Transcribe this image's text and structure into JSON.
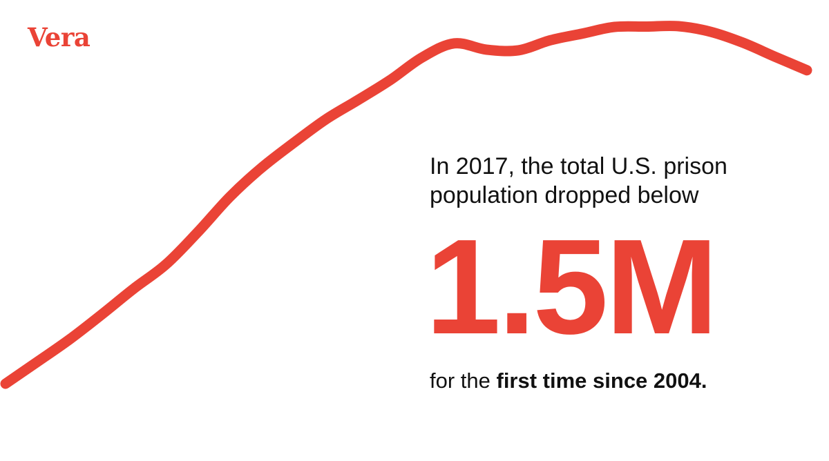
{
  "brand": {
    "name": "Vera",
    "accent_color": "#ea4336",
    "text_color": "#111111"
  },
  "headline": {
    "line1": "In 2017, the total U.S. prison",
    "line2": "population dropped below",
    "big_number": "1.5M",
    "closing_plain": "for the ",
    "closing_bold": "first time since 2004."
  },
  "chart_data": {
    "type": "line",
    "title": "",
    "xlabel": "",
    "ylabel": "",
    "axes_visible": false,
    "grid": false,
    "series": [
      {
        "color": "#ea4336",
        "x": [
          0,
          4,
          8,
          12,
          16,
          20,
          24,
          28,
          32,
          36,
          40,
          44,
          48,
          52,
          56,
          60,
          64,
          68,
          72,
          76,
          80,
          84,
          88,
          92,
          96,
          100
        ],
        "y": [
          3.0,
          9.3,
          15.7,
          22.8,
          30.2,
          37.1,
          46.4,
          56.5,
          64.9,
          72.0,
          78.7,
          84.2,
          89.9,
          96.4,
          100.4,
          98.6,
          98.4,
          101.3,
          103.2,
          105.1,
          105.2,
          105.3,
          103.7,
          100.6,
          96.6,
          92.7
        ]
      }
    ]
  }
}
